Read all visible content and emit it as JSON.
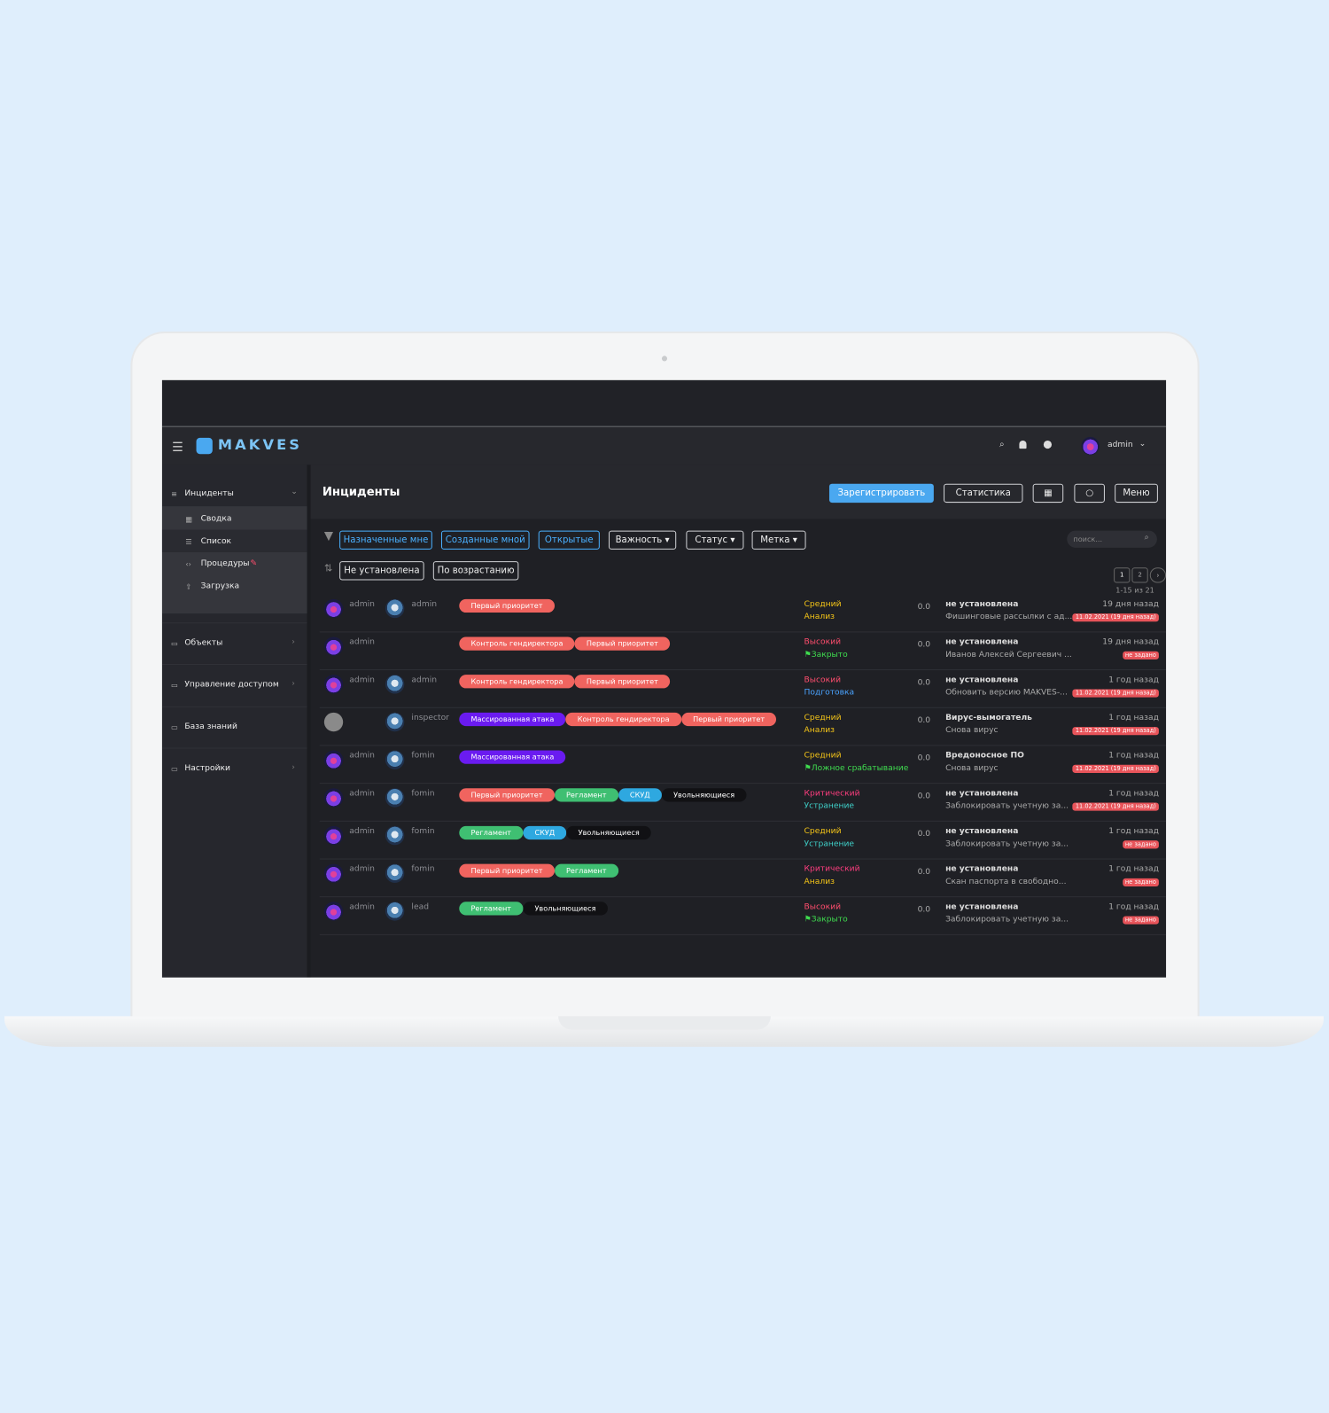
{
  "header": {
    "logo": "MAKVES",
    "user": "admin"
  },
  "sidebar": {
    "incidents": {
      "label": "Инциденты",
      "items": [
        "Сводка",
        "Список",
        "Процедуры",
        "Загрузка"
      ]
    },
    "sections": [
      "Объекты",
      "Управление доступом",
      "База знаний",
      "Настройки"
    ]
  },
  "page": {
    "title": "Инциденты",
    "buttons": {
      "register": "Зарегистрировать",
      "stats": "Статистика",
      "menu": "Меню"
    }
  },
  "filters": {
    "quick": [
      "Назначенные мне",
      "Созданные мной",
      "Открытые"
    ],
    "dropdowns": [
      "Важность",
      "Статус",
      "Метка"
    ],
    "search_placeholder": "поиск..."
  },
  "sort": {
    "field": "Не установлена",
    "order": "По возрастанию"
  },
  "pagination": {
    "pages": [
      "1",
      "2"
    ],
    "range": "1-15 из 21"
  },
  "rows": [
    {
      "author": "admin",
      "assignee": "admin",
      "tags": [
        {
          "text": "Первый приоритет",
          "color": "#f0645f"
        }
      ],
      "severity": {
        "text": "Средний",
        "color": "#f5c518"
      },
      "status": {
        "text": "Анализ",
        "color": "#f5c518",
        "flag": false
      },
      "score": "0.0",
      "category": "не установлена",
      "description": "Фишинговые рассылки с ад...",
      "time": "19 дня назад",
      "deadline": "11.02.2021 (19 дня назад)"
    },
    {
      "author": "admin",
      "assignee": null,
      "tags": [
        {
          "text": "Контроль гендиректора",
          "color": "#f0645f"
        },
        {
          "text": "Первый приоритет",
          "color": "#f0645f"
        }
      ],
      "severity": {
        "text": "Высокий",
        "color": "#ff4d6d"
      },
      "status": {
        "text": "Закрыто",
        "color": "#3fdc4f",
        "flag": true
      },
      "score": "0.0",
      "category": "не установлена",
      "description": "Иванов Алексей Сергеевич ...",
      "time": "19 дня назад",
      "deadline": "не задано"
    },
    {
      "author": "admin",
      "assignee": "admin",
      "tags": [
        {
          "text": "Контроль гендиректора",
          "color": "#f0645f"
        },
        {
          "text": "Первый приоритет",
          "color": "#f0645f"
        }
      ],
      "severity": {
        "text": "Высокий",
        "color": "#ff4d6d"
      },
      "status": {
        "text": "Подготовка",
        "color": "#4aa3ff",
        "flag": false
      },
      "score": "0.0",
      "category": "не установлена",
      "description": "Обновить версию MAKVES-...",
      "time": "1 год назад",
      "deadline": "11.02.2021 (19 дня назад)"
    },
    {
      "author": null,
      "assignee": "inspector",
      "tags": [
        {
          "text": "Массированная атака",
          "color": "#6a1bf0"
        },
        {
          "text": "Контроль гендиректора",
          "color": "#f0645f"
        },
        {
          "text": "Первый приоритет",
          "color": "#f0645f"
        }
      ],
      "severity": {
        "text": "Средний",
        "color": "#f5c518"
      },
      "status": {
        "text": "Анализ",
        "color": "#f5c518",
        "flag": false
      },
      "score": "0.0",
      "category": "Вирус-вымогатель",
      "description": "Снова вирус",
      "time": "1 год назад",
      "deadline": "11.02.2021 (19 дня назад)"
    },
    {
      "author": "admin",
      "assignee": "fomin",
      "tags": [
        {
          "text": "Массированная атака",
          "color": "#6a1bf0"
        }
      ],
      "severity": {
        "text": "Средний",
        "color": "#f5c518"
      },
      "status": {
        "text": "Ложное срабатывание",
        "color": "#3fdc4f",
        "flag": true
      },
      "score": "0.0",
      "category": "Вредоносное ПО",
      "description": "Снова вирус",
      "time": "1 год назад",
      "deadline": "11.02.2021 (19 дня назад)"
    },
    {
      "author": "admin",
      "assignee": "fomin",
      "tags": [
        {
          "text": "Первый приоритет",
          "color": "#f0645f"
        },
        {
          "text": "Регламент",
          "color": "#3fbf72"
        },
        {
          "text": "СКУД",
          "color": "#2ea8e0"
        },
        {
          "text": "Увольняющиеся",
          "color": "#111114"
        }
      ],
      "severity": {
        "text": "Критический",
        "color": "#ff3d7f"
      },
      "status": {
        "text": "Устранение",
        "color": "#3fd0c9",
        "flag": false
      },
      "score": "0.0",
      "category": "не установлена",
      "description": "Заблокировать учетную за...",
      "time": "1 год назад",
      "deadline": "11.02.2021 (19 дня назад)"
    },
    {
      "author": "admin",
      "assignee": "fomin",
      "tags": [
        {
          "text": "Регламент",
          "color": "#3fbf72"
        },
        {
          "text": "СКУД",
          "color": "#2ea8e0"
        },
        {
          "text": "Увольняющиеся",
          "color": "#111114"
        }
      ],
      "severity": {
        "text": "Средний",
        "color": "#f5c518"
      },
      "status": {
        "text": "Устранение",
        "color": "#3fd0c9",
        "flag": false
      },
      "score": "0.0",
      "category": "не установлена",
      "description": "Заблокировать учетную за...",
      "time": "1 год назад",
      "deadline": "не задано"
    },
    {
      "author": "admin",
      "assignee": "fomin",
      "tags": [
        {
          "text": "Первый приоритет",
          "color": "#f0645f"
        },
        {
          "text": "Регламент",
          "color": "#3fbf72"
        }
      ],
      "severity": {
        "text": "Критический",
        "color": "#ff3d7f"
      },
      "status": {
        "text": "Анализ",
        "color": "#f5c518",
        "flag": false
      },
      "score": "0.0",
      "category": "не установлена",
      "description": "Скан паспорта в свободно...",
      "time": "1 год назад",
      "deadline": "не задано"
    },
    {
      "author": "admin",
      "assignee": "lead",
      "tags": [
        {
          "text": "Регламент",
          "color": "#3fbf72"
        },
        {
          "text": "Увольняющиеся",
          "color": "#111114"
        }
      ],
      "severity": {
        "text": "Высокий",
        "color": "#ff4d6d"
      },
      "status": {
        "text": "Закрыто",
        "color": "#3fdc4f",
        "flag": true
      },
      "score": "0.0",
      "category": "не установлена",
      "description": "Заблокировать учетную за...",
      "time": "1 год назад",
      "deadline": "не задано"
    }
  ]
}
